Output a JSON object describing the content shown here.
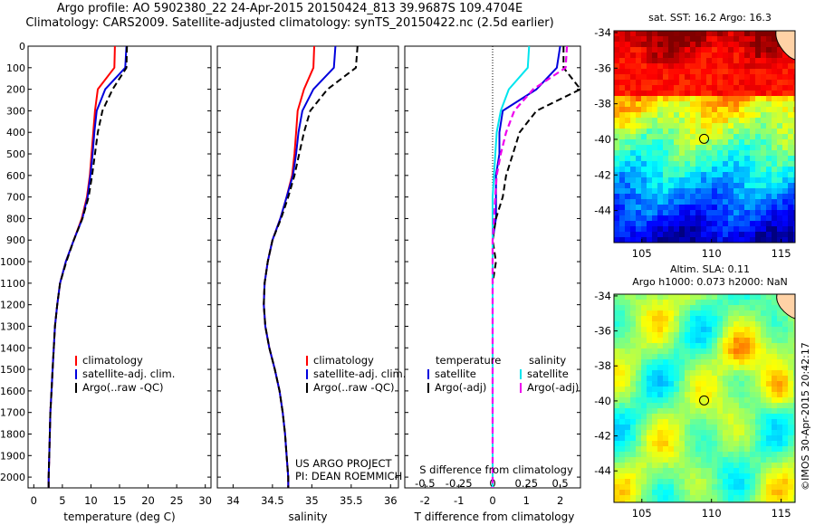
{
  "title_line1": "Argo profile: AO 5902380_22 24-Apr-2015 20150424_813 39.9687S 109.4704E",
  "title_line2": "Climatology: CARS2009. Satellite-adjusted climatology: synTS_20150422.nc (2.5d earlier)",
  "project_line1": "US ARGO PROJECT",
  "project_line2": "PI: DEAN ROEMMICH",
  "timestamp_label": "©IMOS 30-Apr-2015 20:42:17",
  "map_sst": {
    "title": "sat. SST: 16.2 Argo: 16.3",
    "x_ticks": [
      "105",
      "110",
      "115"
    ],
    "y_ticks": [
      "-34",
      "-36",
      "-38",
      "-40",
      "-42",
      "-44"
    ],
    "float_lon": 109.47,
    "float_lat": -39.97
  },
  "map_sla": {
    "title_line1": "Altim. SLA: 0.11",
    "title_line2": "Argo h1000: 0.073 h2000: NaN",
    "x_ticks": [
      "105",
      "110",
      "115"
    ],
    "y_ticks": [
      "-34",
      "-36",
      "-38",
      "-40",
      "-42",
      "-44"
    ],
    "float_lon": 109.47,
    "float_lat": -39.97
  },
  "colors": {
    "climatology": "#ff0000",
    "satellite": "#0000dd",
    "argo": "#000000",
    "sal_satellite": "#00e5ee",
    "sal_argo": "#ee00ee"
  },
  "chart_data": [
    {
      "type": "line",
      "xlabel": "temperature (deg C)",
      "ylabel": "",
      "xlim": [
        -1,
        31
      ],
      "ylim": [
        2050,
        0
      ],
      "x_ticks": [
        "0",
        "5",
        "10",
        "15",
        "20",
        "25",
        "30"
      ],
      "y_ticks": [
        "0",
        "100",
        "200",
        "300",
        "400",
        "500",
        "600",
        "700",
        "800",
        "900",
        "1000",
        "1100",
        "1200",
        "1300",
        "1400",
        "1500",
        "1600",
        "1700",
        "1800",
        "1900",
        "2000"
      ],
      "legend": [
        "climatology",
        "satellite-adj. clim.",
        "Argo(..raw -QC)"
      ],
      "legend_location": "bottom-center",
      "series": [
        {
          "name": "climatology",
          "depth": [
            0,
            100,
            200,
            300,
            400,
            500,
            600,
            700,
            800,
            900,
            1000,
            1100,
            1200,
            1300,
            1400,
            1500,
            1600,
            1700,
            1800,
            1900,
            2000,
            2050
          ],
          "values": [
            14.2,
            14.1,
            11.2,
            10.7,
            10.4,
            10.1,
            9.8,
            9.3,
            8.4,
            7.0,
            5.6,
            4.6,
            4.1,
            3.7,
            3.5,
            3.3,
            3.1,
            2.9,
            2.8,
            2.7,
            2.6,
            2.6
          ]
        },
        {
          "name": "satellite-adj. clim.",
          "depth": [
            0,
            100,
            200,
            300,
            400,
            500,
            600,
            700,
            800,
            900,
            1000,
            1100,
            1200,
            1300,
            1400,
            1500,
            1600,
            1700,
            1800,
            1900,
            2000,
            2050
          ],
          "values": [
            16.2,
            16.0,
            12.5,
            11.0,
            10.6,
            10.3,
            9.9,
            9.4,
            8.5,
            7.0,
            5.6,
            4.6,
            4.1,
            3.7,
            3.5,
            3.3,
            3.1,
            2.9,
            2.8,
            2.7,
            2.6,
            2.6
          ]
        },
        {
          "name": "Argo(..raw -QC)",
          "depth": [
            0,
            100,
            200,
            300,
            400,
            500,
            600,
            700,
            800,
            900,
            1000,
            1100,
            1200,
            1300,
            1400,
            1500,
            1600,
            1700,
            1800,
            1900,
            2000,
            2050
          ],
          "values": [
            16.3,
            16.2,
            13.8,
            12.0,
            11.2,
            10.7,
            10.2,
            9.6,
            8.5,
            7.0,
            5.7,
            4.6,
            4.1,
            3.7,
            3.5,
            3.3,
            3.1,
            2.9,
            2.8,
            2.7,
            2.6,
            2.6
          ]
        }
      ]
    },
    {
      "type": "line",
      "xlabel": "salinity",
      "ylabel": "",
      "xlim": [
        33.8,
        36.1
      ],
      "ylim": [
        2050,
        0
      ],
      "x_ticks": [
        "34",
        "34.5",
        "35",
        "35.5",
        "36"
      ],
      "legend": [
        "climatology",
        "satellite-adj. clim.",
        "Argo(..raw -QC)"
      ],
      "legend_location": "bottom-center",
      "series": [
        {
          "name": "climatology",
          "depth": [
            0,
            100,
            200,
            300,
            400,
            500,
            600,
            700,
            800,
            900,
            1000,
            1100,
            1200,
            1300,
            1400,
            1500,
            1600,
            1700,
            1800,
            1900,
            2000,
            2050
          ],
          "values": [
            35.03,
            35.02,
            34.9,
            34.82,
            34.8,
            34.78,
            34.75,
            34.68,
            34.6,
            34.5,
            34.44,
            34.4,
            34.39,
            34.41,
            34.46,
            34.53,
            34.59,
            34.63,
            34.66,
            34.68,
            34.7,
            34.7
          ]
        },
        {
          "name": "satellite-adj. clim.",
          "depth": [
            0,
            100,
            200,
            300,
            400,
            500,
            600,
            700,
            800,
            900,
            1000,
            1100,
            1200,
            1300,
            1400,
            1500,
            1600,
            1700,
            1800,
            1900,
            2000,
            2050
          ],
          "values": [
            35.3,
            35.28,
            35.02,
            34.88,
            34.83,
            34.8,
            34.76,
            34.68,
            34.6,
            34.5,
            34.44,
            34.4,
            34.39,
            34.41,
            34.46,
            34.53,
            34.59,
            34.63,
            34.66,
            34.68,
            34.7,
            34.7
          ]
        },
        {
          "name": "Argo(..raw -QC)",
          "depth": [
            0,
            100,
            200,
            300,
            400,
            500,
            600,
            700,
            800,
            900,
            1000,
            1100,
            1200,
            1300,
            1400,
            1500,
            1600,
            1700,
            1800,
            1900,
            2000,
            2050
          ],
          "values": [
            35.58,
            35.56,
            35.2,
            34.98,
            34.9,
            34.84,
            34.78,
            34.7,
            34.61,
            34.5,
            34.44,
            34.4,
            34.39,
            34.41,
            34.46,
            34.53,
            34.59,
            34.63,
            34.66,
            34.68,
            34.7,
            34.7
          ]
        }
      ]
    },
    {
      "type": "line",
      "xlabel": "T difference from climatology",
      "x2label": "S difference from climatology",
      "xlim": [
        -2.6,
        2.6
      ],
      "ylim": [
        2050,
        0
      ],
      "x_ticks": [
        "-2",
        "-1",
        "0",
        "1",
        "2"
      ],
      "x2_ticks": [
        "-0.5",
        "-0.25",
        "0",
        "0.25",
        "0.5"
      ],
      "legend_col1_title": "temperature",
      "legend_col2_title": "salinity",
      "legend": [
        "satellite",
        "Argo(-adj)",
        "satellite",
        "Argo(-adj)"
      ],
      "legend_location": "bottom-center",
      "series": [
        {
          "name": "satellite",
          "depth": [
            0,
            100,
            200,
            300,
            400,
            500,
            600,
            700,
            800,
            900,
            1000,
            1100,
            1200,
            1300,
            1400,
            1500,
            1600,
            1700,
            1800,
            1900,
            2000,
            2050
          ],
          "values": [
            2.0,
            1.9,
            1.3,
            0.3,
            0.2,
            0.2,
            0.1,
            0.1,
            0.1,
            0.0,
            0.0,
            0.0,
            0.0,
            0.0,
            0.0,
            0.0,
            0.0,
            0.0,
            0.0,
            0.0,
            0.0,
            0.0
          ]
        },
        {
          "name": "Argo(-adj)",
          "depth": [
            0,
            100,
            200,
            300,
            400,
            500,
            600,
            700,
            800,
            900,
            1000,
            1100,
            1200,
            1300,
            1400,
            1500,
            1600,
            1700,
            1800,
            1900,
            2000,
            2050
          ],
          "values": [
            2.1,
            2.1,
            2.6,
            1.3,
            0.8,
            0.6,
            0.4,
            0.3,
            0.1,
            0.0,
            0.1,
            0.0,
            0.0,
            0.0,
            0.0,
            0.0,
            0.0,
            0.0,
            0.0,
            0.0,
            0.0,
            0.0
          ]
        },
        {
          "name": "satellite",
          "depth": [
            0,
            100,
            200,
            300,
            400,
            500,
            600,
            700,
            800,
            900,
            1000,
            1100,
            1200,
            1300,
            1400,
            1500,
            1600,
            1700,
            1800,
            1900,
            2000,
            2050
          ],
          "values": [
            0.27,
            0.26,
            0.12,
            0.06,
            0.03,
            0.02,
            0.01,
            0.0,
            0.0,
            0.0,
            0.0,
            0.0,
            0.0,
            0.0,
            0.0,
            0.0,
            0.0,
            0.0,
            0.0,
            0.0,
            0.0,
            0.0
          ]
        },
        {
          "name": "Argo(-adj)",
          "depth": [
            0,
            100,
            200,
            300,
            400,
            500,
            600,
            700,
            800,
            900,
            1000,
            1100,
            1200,
            1300,
            1400,
            1500,
            1600,
            1700,
            1800,
            1900,
            2000,
            2050
          ],
          "values": [
            0.55,
            0.54,
            0.3,
            0.16,
            0.1,
            0.06,
            0.03,
            0.02,
            0.01,
            0.0,
            0.0,
            0.0,
            0.0,
            0.0,
            0.0,
            0.0,
            0.0,
            0.0,
            0.0,
            0.0,
            0.0,
            0.0
          ]
        }
      ]
    }
  ]
}
